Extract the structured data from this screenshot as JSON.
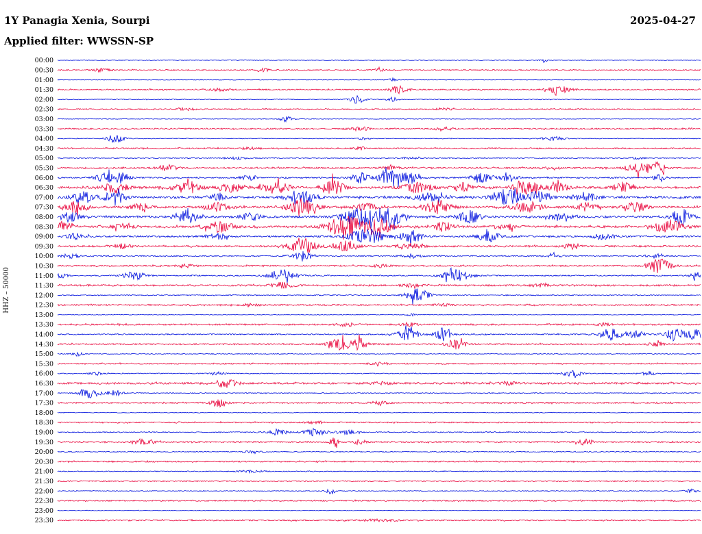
{
  "header": {
    "station": "1Y Panagia Xenia, Sourpi",
    "date": "2025-04-27",
    "filter": "Applied filter: WWSSN-SP"
  },
  "axis": {
    "y_label": "HHZ – 50000"
  },
  "chart_data": {
    "type": "line",
    "subtype": "helicorder-seismogram",
    "title": "1Y Panagia Xenia, Sourpi",
    "date": "2025-04-27",
    "filter": "WWSSN-SP",
    "channel": "HHZ",
    "scale": 50000,
    "row_minutes": 30,
    "colors": {
      "blue": "#0010dd",
      "red": "#e80038"
    },
    "x_range_fraction": [
      0,
      1
    ],
    "rows": [
      {
        "time": "00:00",
        "color": "blue",
        "noise": 0.4,
        "events": [
          [
            0.755,
            3,
            0.004
          ]
        ]
      },
      {
        "time": "00:30",
        "color": "red",
        "noise": 0.8,
        "events": [
          [
            0.07,
            2,
            0.01
          ],
          [
            0.32,
            2,
            0.008
          ],
          [
            0.5,
            2,
            0.006
          ]
        ]
      },
      {
        "time": "01:00",
        "color": "blue",
        "noise": 0.4,
        "events": [
          [
            0.52,
            2.5,
            0.004
          ]
        ]
      },
      {
        "time": "01:30",
        "color": "red",
        "noise": 0.9,
        "events": [
          [
            0.25,
            2,
            0.01
          ],
          [
            0.53,
            6,
            0.008
          ],
          [
            0.78,
            5,
            0.012
          ]
        ]
      },
      {
        "time": "02:00",
        "color": "blue",
        "noise": 0.5,
        "events": [
          [
            0.465,
            6,
            0.008
          ],
          [
            0.52,
            4,
            0.006
          ]
        ]
      },
      {
        "time": "02:30",
        "color": "red",
        "noise": 0.8,
        "events": [
          [
            0.2,
            1.5,
            0.01
          ],
          [
            0.6,
            1.5,
            0.01
          ]
        ]
      },
      {
        "time": "03:00",
        "color": "blue",
        "noise": 0.4,
        "events": [
          [
            0.355,
            4,
            0.007
          ]
        ]
      },
      {
        "time": "03:30",
        "color": "red",
        "noise": 1.0,
        "events": [
          [
            0.47,
            2.5,
            0.01
          ],
          [
            0.6,
            2,
            0.01
          ]
        ]
      },
      {
        "time": "04:00",
        "color": "blue",
        "noise": 0.5,
        "events": [
          [
            0.09,
            6,
            0.009
          ],
          [
            0.475,
            2,
            0.005
          ],
          [
            0.77,
            3,
            0.012
          ]
        ]
      },
      {
        "time": "04:30",
        "color": "red",
        "noise": 0.9,
        "events": [
          [
            0.3,
            1.5,
            0.01
          ],
          [
            0.47,
            2.5,
            0.006
          ]
        ]
      },
      {
        "time": "05:00",
        "color": "blue",
        "noise": 0.6,
        "events": [
          [
            0.28,
            2,
            0.01
          ],
          [
            0.55,
            1.5,
            0.01
          ],
          [
            0.9,
            1.5,
            0.008
          ]
        ]
      },
      {
        "time": "05:30",
        "color": "red",
        "noise": 1.1,
        "events": [
          [
            0.17,
            4,
            0.01
          ],
          [
            0.52,
            2,
            0.01
          ],
          [
            0.77,
            2.5,
            0.008
          ],
          [
            0.905,
            9,
            0.012
          ],
          [
            0.935,
            8,
            0.008
          ]
        ]
      },
      {
        "time": "06:00",
        "color": "blue",
        "noise": 1.0,
        "events": [
          [
            0.075,
            7,
            0.01
          ],
          [
            0.1,
            8,
            0.008
          ],
          [
            0.3,
            3,
            0.01
          ],
          [
            0.47,
            8,
            0.01
          ],
          [
            0.52,
            12,
            0.012
          ],
          [
            0.55,
            8,
            0.008
          ],
          [
            0.66,
            6,
            0.012
          ],
          [
            0.7,
            4,
            0.01
          ],
          [
            0.935,
            4,
            0.008
          ]
        ]
      },
      {
        "time": "06:30",
        "color": "red",
        "noise": 1.5,
        "events": [
          [
            0.09,
            8,
            0.012
          ],
          [
            0.2,
            7,
            0.015
          ],
          [
            0.27,
            6,
            0.012
          ],
          [
            0.34,
            8,
            0.015
          ],
          [
            0.43,
            12,
            0.01
          ],
          [
            0.56,
            7,
            0.015
          ],
          [
            0.63,
            6,
            0.01
          ],
          [
            0.73,
            9,
            0.015
          ],
          [
            0.78,
            6,
            0.01
          ],
          [
            0.88,
            7,
            0.01
          ]
        ]
      },
      {
        "time": "07:00",
        "color": "blue",
        "noise": 1.5,
        "events": [
          [
            0.04,
            8,
            0.012
          ],
          [
            0.09,
            9,
            0.012
          ],
          [
            0.25,
            4,
            0.01
          ],
          [
            0.38,
            9,
            0.015
          ],
          [
            0.58,
            8,
            0.015
          ],
          [
            0.7,
            12,
            0.015
          ],
          [
            0.75,
            9,
            0.012
          ],
          [
            0.82,
            7,
            0.012
          ]
        ]
      },
      {
        "time": "07:30",
        "color": "red",
        "noise": 1.5,
        "events": [
          [
            0.03,
            8,
            0.012
          ],
          [
            0.13,
            5,
            0.01
          ],
          [
            0.25,
            6,
            0.012
          ],
          [
            0.38,
            12,
            0.015
          ],
          [
            0.48,
            5,
            0.012
          ],
          [
            0.59,
            9,
            0.015
          ],
          [
            0.73,
            8,
            0.015
          ],
          [
            0.82,
            6,
            0.012
          ],
          [
            0.9,
            7,
            0.012
          ]
        ]
      },
      {
        "time": "08:00",
        "color": "blue",
        "noise": 1.5,
        "events": [
          [
            0.02,
            8,
            0.01
          ],
          [
            0.2,
            9,
            0.012
          ],
          [
            0.3,
            5,
            0.012
          ],
          [
            0.47,
            14,
            0.018
          ],
          [
            0.52,
            12,
            0.012
          ],
          [
            0.64,
            9,
            0.012
          ],
          [
            0.78,
            5,
            0.012
          ],
          [
            0.97,
            12,
            0.01
          ]
        ]
      },
      {
        "time": "08:30",
        "color": "red",
        "noise": 1.5,
        "events": [
          [
            0.01,
            7,
            0.01
          ],
          [
            0.1,
            4,
            0.012
          ],
          [
            0.25,
            8,
            0.015
          ],
          [
            0.45,
            16,
            0.02
          ],
          [
            0.5,
            14,
            0.012
          ],
          [
            0.6,
            6,
            0.012
          ],
          [
            0.7,
            4,
            0.012
          ],
          [
            0.95,
            10,
            0.015
          ]
        ]
      },
      {
        "time": "09:00",
        "color": "blue",
        "noise": 1.2,
        "events": [
          [
            0.03,
            5,
            0.01
          ],
          [
            0.25,
            4,
            0.012
          ],
          [
            0.48,
            12,
            0.018
          ],
          [
            0.55,
            8,
            0.012
          ],
          [
            0.67,
            7,
            0.012
          ],
          [
            0.85,
            4,
            0.012
          ]
        ]
      },
      {
        "time": "09:30",
        "color": "red",
        "noise": 1.2,
        "events": [
          [
            0.1,
            3,
            0.01
          ],
          [
            0.38,
            12,
            0.015
          ],
          [
            0.45,
            8,
            0.012
          ],
          [
            0.55,
            4,
            0.012
          ],
          [
            0.8,
            4,
            0.01
          ]
        ]
      },
      {
        "time": "10:00",
        "color": "blue",
        "noise": 0.8,
        "events": [
          [
            0.02,
            4,
            0.008
          ],
          [
            0.38,
            6,
            0.012
          ],
          [
            0.55,
            3,
            0.01
          ],
          [
            0.77,
            4,
            0.008
          ],
          [
            0.93,
            3,
            0.008
          ]
        ]
      },
      {
        "time": "10:30",
        "color": "red",
        "noise": 1.0,
        "events": [
          [
            0.2,
            2,
            0.01
          ],
          [
            0.5,
            2,
            0.01
          ],
          [
            0.935,
            10,
            0.012
          ]
        ]
      },
      {
        "time": "11:00",
        "color": "blue",
        "noise": 0.8,
        "events": [
          [
            0.005,
            5,
            0.006
          ],
          [
            0.12,
            6,
            0.012
          ],
          [
            0.35,
            9,
            0.015
          ],
          [
            0.62,
            9,
            0.015
          ],
          [
            0.99,
            4,
            0.006
          ]
        ]
      },
      {
        "time": "11:30",
        "color": "red",
        "noise": 1.2,
        "events": [
          [
            0.35,
            4,
            0.012
          ],
          [
            0.55,
            2,
            0.01
          ],
          [
            0.75,
            2,
            0.01
          ]
        ]
      },
      {
        "time": "12:00",
        "color": "blue",
        "noise": 0.6,
        "events": [
          [
            0.56,
            10,
            0.012
          ]
        ]
      },
      {
        "time": "12:30",
        "color": "red",
        "noise": 1.0,
        "events": [
          [
            0.3,
            1.5,
            0.01
          ],
          [
            0.6,
            1.5,
            0.01
          ]
        ]
      },
      {
        "time": "13:00",
        "color": "blue",
        "noise": 0.4,
        "events": [
          [
            0.55,
            2,
            0.005
          ]
        ]
      },
      {
        "time": "13:30",
        "color": "red",
        "noise": 1.1,
        "events": [
          [
            0.45,
            2.5,
            0.01
          ],
          [
            0.55,
            2.5,
            0.01
          ],
          [
            0.85,
            2,
            0.008
          ]
        ]
      },
      {
        "time": "14:00",
        "color": "blue",
        "noise": 0.8,
        "events": [
          [
            0.545,
            9,
            0.012
          ],
          [
            0.6,
            9,
            0.01
          ],
          [
            0.86,
            8,
            0.012
          ],
          [
            0.9,
            6,
            0.008
          ],
          [
            0.96,
            8,
            0.012
          ],
          [
            0.99,
            7,
            0.008
          ]
        ]
      },
      {
        "time": "14:30",
        "color": "red",
        "noise": 1.0,
        "events": [
          [
            0.44,
            9,
            0.012
          ],
          [
            0.47,
            8,
            0.008
          ],
          [
            0.62,
            7,
            0.01
          ],
          [
            0.93,
            3,
            0.008
          ]
        ]
      },
      {
        "time": "15:00",
        "color": "blue",
        "noise": 0.5,
        "events": [
          [
            0.03,
            3,
            0.006
          ]
        ]
      },
      {
        "time": "15:30",
        "color": "red",
        "noise": 0.9,
        "events": [
          [
            0.5,
            1.5,
            0.01
          ]
        ]
      },
      {
        "time": "16:00",
        "color": "blue",
        "noise": 0.6,
        "events": [
          [
            0.06,
            2,
            0.008
          ],
          [
            0.25,
            2,
            0.008
          ],
          [
            0.8,
            4,
            0.01
          ],
          [
            0.92,
            3,
            0.008
          ]
        ]
      },
      {
        "time": "16:30",
        "color": "red",
        "noise": 1.3,
        "events": [
          [
            0.26,
            5,
            0.015
          ],
          [
            0.5,
            2,
            0.012
          ],
          [
            0.7,
            2,
            0.01
          ]
        ]
      },
      {
        "time": "17:00",
        "color": "blue",
        "noise": 0.6,
        "events": [
          [
            0.05,
            8,
            0.01
          ],
          [
            0.09,
            4,
            0.008
          ]
        ]
      },
      {
        "time": "17:30",
        "color": "red",
        "noise": 1.0,
        "events": [
          [
            0.25,
            6,
            0.008
          ],
          [
            0.5,
            2,
            0.01
          ]
        ]
      },
      {
        "time": "18:00",
        "color": "blue",
        "noise": 0.4,
        "events": []
      },
      {
        "time": "18:30",
        "color": "red",
        "noise": 0.9,
        "events": [
          [
            0.4,
            1.5,
            0.01
          ]
        ]
      },
      {
        "time": "19:00",
        "color": "blue",
        "noise": 0.7,
        "events": [
          [
            0.34,
            4,
            0.012
          ],
          [
            0.4,
            5,
            0.012
          ],
          [
            0.45,
            4,
            0.01
          ]
        ]
      },
      {
        "time": "19:30",
        "color": "red",
        "noise": 1.0,
        "events": [
          [
            0.135,
            5,
            0.01
          ],
          [
            0.43,
            7,
            0.005
          ],
          [
            0.47,
            4,
            0.006
          ],
          [
            0.82,
            5,
            0.008
          ]
        ]
      },
      {
        "time": "20:00",
        "color": "blue",
        "noise": 0.6,
        "events": [
          [
            0.3,
            1.5,
            0.01
          ]
        ]
      },
      {
        "time": "20:30",
        "color": "red",
        "noise": 0.9,
        "events": []
      },
      {
        "time": "21:00",
        "color": "blue",
        "noise": 0.6,
        "events": [
          [
            0.3,
            1.5,
            0.015
          ]
        ]
      },
      {
        "time": "21:30",
        "color": "red",
        "noise": 0.8,
        "events": []
      },
      {
        "time": "22:00",
        "color": "blue",
        "noise": 0.5,
        "events": [
          [
            0.425,
            5,
            0.005
          ],
          [
            0.985,
            3,
            0.006
          ]
        ]
      },
      {
        "time": "22:30",
        "color": "red",
        "noise": 0.9,
        "events": []
      },
      {
        "time": "23:00",
        "color": "blue",
        "noise": 0.4,
        "events": []
      },
      {
        "time": "23:30",
        "color": "red",
        "noise": 0.9,
        "events": [
          [
            0.5,
            1.5,
            0.02
          ]
        ]
      }
    ]
  }
}
